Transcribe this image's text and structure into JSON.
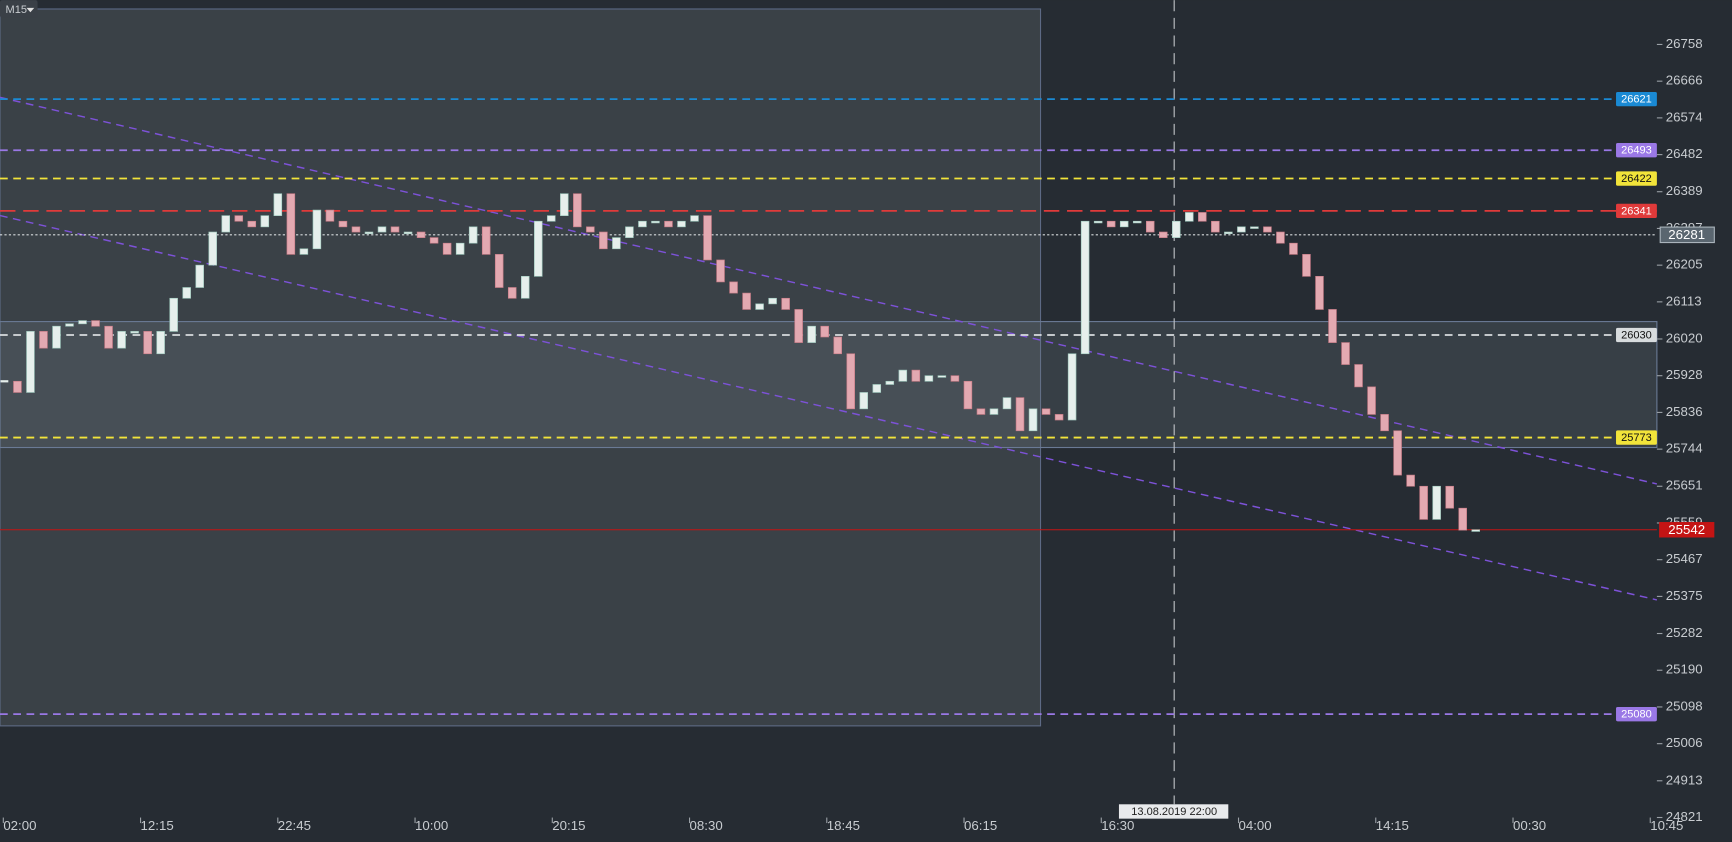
{
  "chart_data": {
    "type": "candlestick",
    "timeframe": "M15",
    "ylim": [
      24760,
      26869
    ],
    "yticks": [
      26758,
      26666,
      26574,
      26482,
      26389,
      26297,
      26205,
      26113,
      26020,
      25928,
      25836,
      25744,
      25651,
      25559,
      25467,
      25375,
      25282,
      25190,
      25098,
      25006,
      24913,
      24821
    ],
    "x_tick_labels": [
      "02:00",
      "12:15",
      "22:45",
      "10:00",
      "20:15",
      "08:30",
      "18:45",
      "06:15",
      "16:30",
      "04:00",
      "14:15",
      "00:30",
      "10:45"
    ],
    "up_color": "#e6efec",
    "down_color": "#e3a9b1",
    "values": [
      25914,
      25886,
      26039,
      25997,
      26052,
      26058,
      26066,
      26052,
      25997,
      26039,
      26039,
      25983,
      26039,
      26122,
      26149,
      26205,
      26288,
      26329,
      26315,
      26301,
      26329,
      26384,
      26232,
      26246,
      26343,
      26315,
      26301,
      26288,
      26288,
      26301,
      26288,
      26288,
      26274,
      26260,
      26232,
      26260,
      26301,
      26232,
      26149,
      26122,
      26177,
      26315,
      26329,
      26384,
      26301,
      26288,
      26246,
      26274,
      26301,
      26315,
      26315,
      26301,
      26315,
      26329,
      26218,
      26163,
      26135,
      26094,
      26108,
      26122,
      26094,
      26011,
      26052,
      26025,
      25983,
      25845,
      25886,
      25906,
      25914,
      25942,
      25914,
      25928,
      25928,
      25914,
      25845,
      25831,
      25845,
      25873,
      25790,
      25845,
      25831,
      25817,
      25983,
      26315,
      26315,
      26301,
      26315,
      26315,
      26288,
      26274,
      26315,
      26337,
      26315,
      26288,
      26288,
      26301,
      26301,
      26288,
      26260,
      26232,
      26177,
      26094,
      26011,
      25956,
      25900,
      25831,
      25790,
      25679,
      25651,
      25568,
      25651,
      25596,
      25541,
      25542
    ],
    "levels": [
      {
        "value": 26621,
        "color": "#1a8ad4"
      },
      {
        "value": 26493,
        "color": "#9a78e6"
      },
      {
        "value": 26422,
        "color": "#f2e43a"
      },
      {
        "value": 26341,
        "color": "#e03a3a"
      },
      {
        "value": 26030,
        "color": "#d8dcde"
      },
      {
        "value": 25773,
        "color": "#f2e43a"
      },
      {
        "value": 25080,
        "color": "#9a78e6"
      }
    ],
    "last_price": 25542,
    "last_price_color": "#c41414",
    "crosshair": {
      "price": 26281,
      "time_label": "13.08.2019 22:00"
    }
  }
}
